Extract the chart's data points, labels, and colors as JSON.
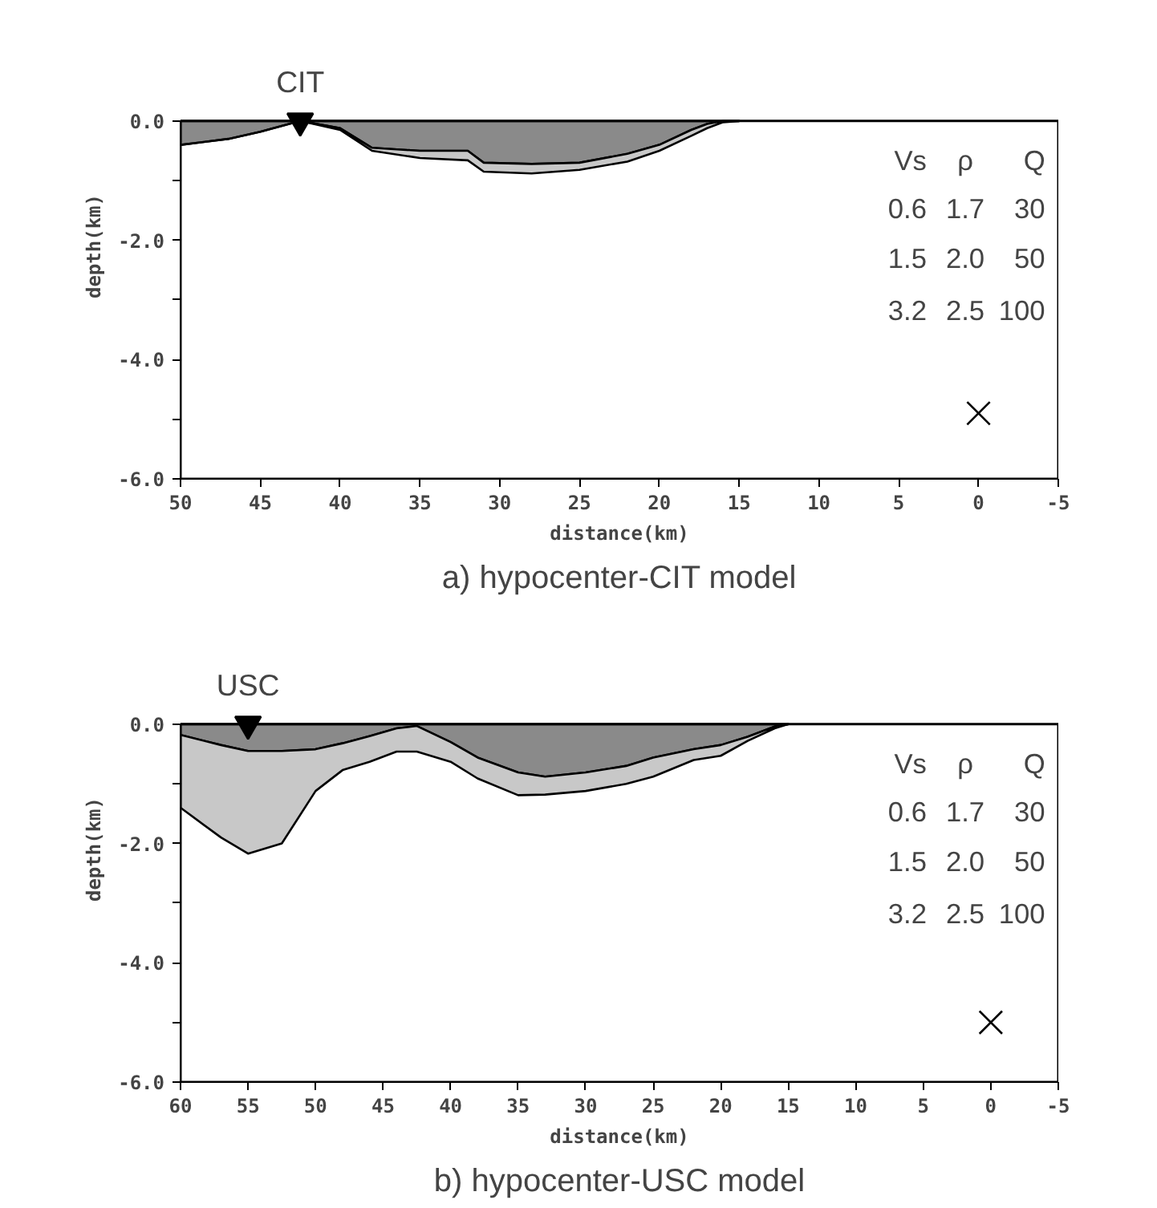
{
  "chart_data": [
    {
      "type": "area",
      "title": "a) hypocenter-CIT model",
      "xlabel": "distance(km)",
      "ylabel": "depth(km)",
      "stacked": true,
      "x": [
        50,
        47,
        45,
        42.5,
        40,
        38,
        35,
        32,
        31,
        28,
        25,
        22,
        20,
        18,
        17,
        16,
        15
      ],
      "series": [
        {
          "color": "#8a8a8a",
          "values": [
            -0.4,
            -0.3,
            -0.18,
            0,
            -0.12,
            -0.45,
            -0.5,
            -0.5,
            -0.7,
            -0.72,
            -0.7,
            -0.55,
            -0.4,
            -0.15,
            -0.05,
            0,
            0
          ]
        },
        {
          "color": "#c8c8c8",
          "values": [
            0,
            0,
            0,
            0,
            -0.03,
            -0.05,
            -0.12,
            -0.16,
            -0.15,
            -0.16,
            -0.12,
            -0.13,
            -0.1,
            -0.1,
            -0.07,
            -0.02,
            0
          ]
        },
        {
          "type": "scatter",
          "marker": "cross",
          "color": "#000000",
          "x": [
            0
          ],
          "values": [
            -4.9
          ]
        },
        {
          "type": "scatter",
          "marker": "triangle",
          "color": "#000000",
          "x": [
            42.5
          ],
          "values": [
            0
          ]
        }
      ],
      "xlim": [
        50,
        -5
      ],
      "xticks": [
        50,
        45,
        40,
        35,
        30,
        25,
        20,
        15,
        10,
        5,
        0,
        -5
      ],
      "ylim": [
        -6,
        0
      ],
      "yticks": [
        {
          "value": 0,
          "label": "0.0"
        },
        {
          "value": -1,
          "label": null
        },
        {
          "value": -2,
          "label": "-2.0"
        },
        {
          "value": -3,
          "label": null
        },
        {
          "value": -4,
          "label": "-4.0"
        },
        {
          "value": -5,
          "label": null
        },
        {
          "value": -6,
          "label": "-6.0"
        }
      ],
      "annotations": [
        {
          "text": "CIT",
          "x": 42.5,
          "y": 0
        },
        "Vs ρ Q",
        "0.6 1.7 30",
        "1.5 2.0 50",
        "3.2 2.5 100"
      ]
    },
    {
      "type": "area",
      "title": "b) hypocenter-USC model",
      "xlabel": "distance(km)",
      "ylabel": "depth(km)",
      "stacked": true,
      "x": [
        60,
        57,
        55,
        52.5,
        50,
        48,
        46,
        44,
        42.5,
        40,
        38,
        35,
        33,
        30,
        27,
        25,
        22,
        20,
        18,
        16,
        15
      ],
      "series": [
        {
          "color": "#8a8a8a",
          "values": [
            -0.18,
            -0.35,
            -0.45,
            -0.45,
            -0.42,
            -0.32,
            -0.2,
            -0.07,
            -0.03,
            -0.3,
            -0.56,
            -0.81,
            -0.88,
            -0.81,
            -0.7,
            -0.56,
            -0.42,
            -0.35,
            -0.21,
            -0.04,
            0
          ]
        },
        {
          "color": "#c8c8c8",
          "values": [
            -1.22,
            -1.55,
            -1.72,
            -1.55,
            -0.7,
            -0.45,
            -0.43,
            -0.39,
            -0.43,
            -0.33,
            -0.35,
            -0.38,
            -0.3,
            -0.31,
            -0.3,
            -0.32,
            -0.18,
            -0.18,
            -0.07,
            -0.03,
            0
          ]
        },
        {
          "type": "scatter",
          "marker": "cross",
          "color": "#000000",
          "x": [
            0
          ],
          "values": [
            -5.0
          ]
        },
        {
          "type": "scatter",
          "marker": "triangle",
          "color": "#000000",
          "x": [
            55
          ],
          "values": [
            0
          ]
        }
      ],
      "xlim": [
        60,
        -5
      ],
      "xticks": [
        60,
        55,
        50,
        45,
        40,
        35,
        30,
        25,
        20,
        15,
        10,
        5,
        0,
        -5
      ],
      "ylim": [
        -6,
        0
      ],
      "yticks": [
        {
          "value": 0,
          "label": "0.0"
        },
        {
          "value": -1,
          "label": null
        },
        {
          "value": -2,
          "label": "-2.0"
        },
        {
          "value": -3,
          "label": null
        },
        {
          "value": -4,
          "label": "-4.0"
        },
        {
          "value": -5,
          "label": null
        },
        {
          "value": -6,
          "label": "-6.0"
        }
      ],
      "annotations": [
        {
          "text": "USC",
          "x": 55,
          "y": 0
        },
        "Vs ρ Q",
        "0.6 1.7 30",
        "1.5 2.0 50",
        "3.2 2.5 100"
      ]
    }
  ]
}
